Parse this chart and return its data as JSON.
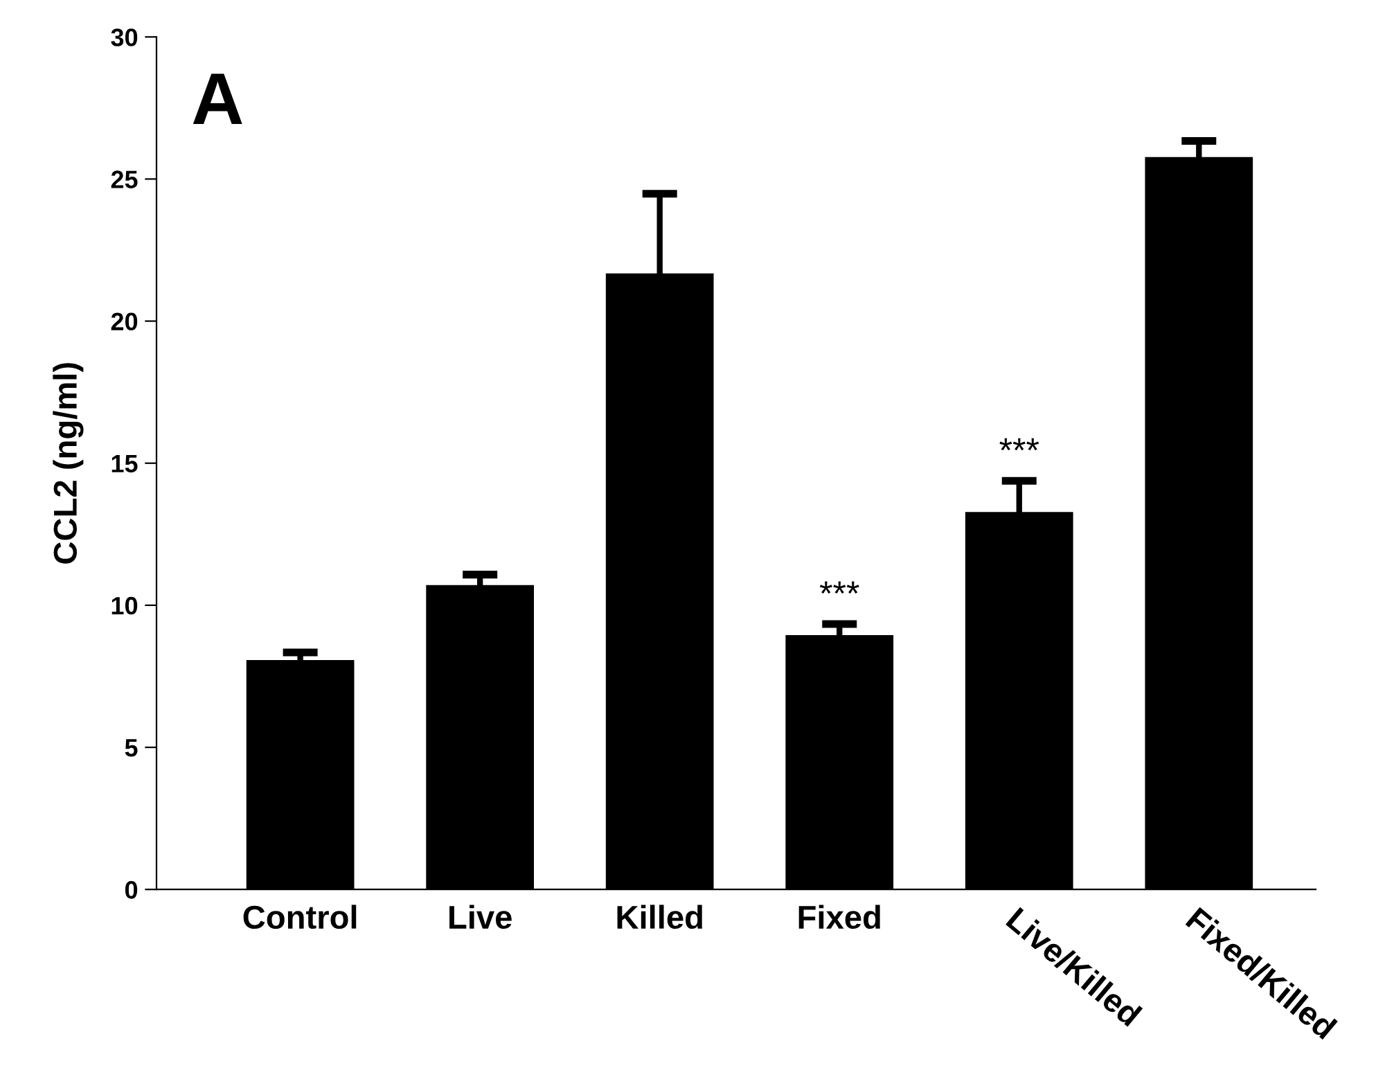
{
  "chart_data": {
    "type": "bar",
    "ylabel": "CCL2 (ng/ml)",
    "categories": [
      "Control",
      "Live",
      "Killed",
      "Fixed",
      "Live/Killed",
      "Fixed/Killed"
    ],
    "values": [
      8.07,
      10.71,
      21.68,
      8.95,
      13.28,
      25.77
    ],
    "errors": [
      0.27,
      0.37,
      2.8,
      0.39,
      1.1,
      0.57
    ],
    "color": "#000000",
    "ylim": [
      0,
      30
    ],
    "yticks": [
      0,
      5,
      10,
      15,
      20,
      25,
      30
    ],
    "grid": false,
    "legend": false,
    "annotations": [
      "A",
      {
        "text": "***",
        "x": "Fixed",
        "y": 8.95
      },
      {
        "text": "***",
        "x": "Live/Killed",
        "y": 13.28
      }
    ]
  }
}
